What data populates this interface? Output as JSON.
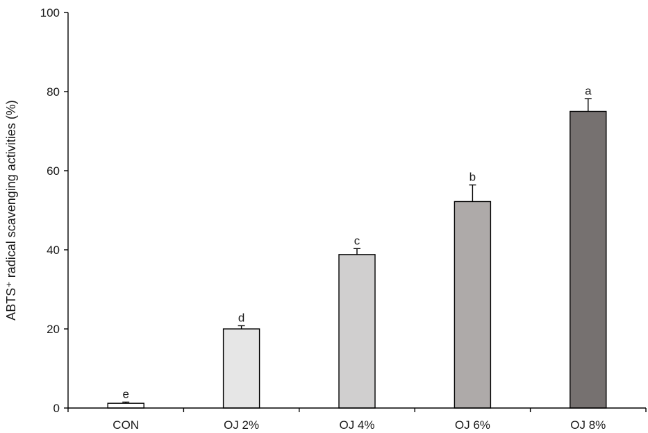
{
  "chart_data": {
    "type": "bar",
    "title": "",
    "xlabel": "",
    "ylabel": "ABTS⁺ radical scavenging activities (%)",
    "ylim": [
      0,
      100
    ],
    "yticks": [
      0,
      20,
      40,
      60,
      80,
      100
    ],
    "grid": false,
    "categories": [
      "CON",
      "OJ 2%",
      "OJ 4%",
      "OJ 6%",
      "OJ 8%"
    ],
    "values": [
      1.2,
      20.0,
      38.8,
      52.2,
      75.0
    ],
    "errors": [
      0.3,
      0.8,
      1.5,
      4.2,
      3.2
    ],
    "significance": [
      "e",
      "d",
      "c",
      "b",
      "a"
    ],
    "colors": [
      "#ffffff",
      "#e6e6e6",
      "#d0cfcf",
      "#aeaaa9",
      "#767170"
    ]
  }
}
